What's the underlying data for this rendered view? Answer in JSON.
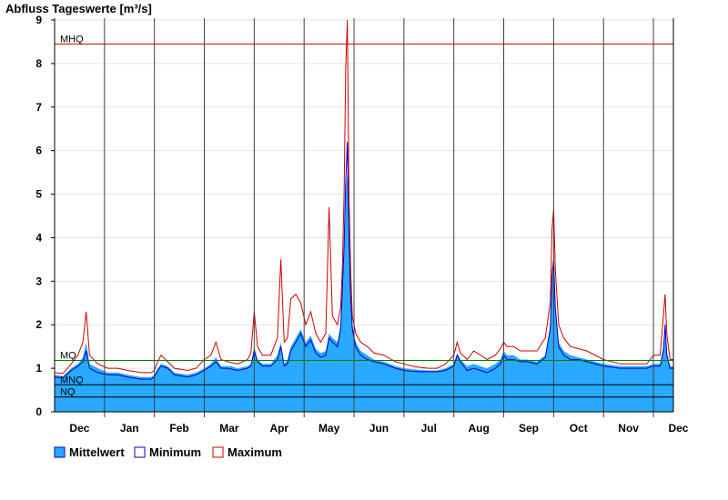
{
  "chart_data": {
    "type": "area",
    "title": "Abfluss Tageswerte [m³/s]",
    "xlabel": "",
    "ylabel": "",
    "ylim": [
      0,
      9
    ],
    "yticks": [
      "0",
      "1",
      "2",
      "3",
      "4",
      "5",
      "6",
      "7",
      "8",
      "9"
    ],
    "months": [
      "Dec",
      "Jan",
      "Feb",
      "Mar",
      "Apr",
      "May",
      "Jun",
      "Jul",
      "Aug",
      "Sep",
      "Oct",
      "Nov",
      "Dec"
    ],
    "x_range_days": [
      0,
      372
    ],
    "grid": "horizontal light gray + vertical month separators",
    "legend_placement": "bottom-left",
    "reference_lines": [
      {
        "name": "MHQ",
        "value": 8.45,
        "color": "#cc0000"
      },
      {
        "name": "MQ",
        "value": 1.18,
        "color": "#008000"
      },
      {
        "name": "MNQ",
        "value": 0.62,
        "color": "#000000"
      },
      {
        "name": "NQ",
        "value": 0.34,
        "color": "#000000"
      }
    ],
    "series": [
      {
        "name": "Mittelwert",
        "kind": "area",
        "color": "#29a9ff",
        "points": [
          [
            0,
            0.85
          ],
          [
            5,
            0.82
          ],
          [
            10,
            1.0
          ],
          [
            14,
            1.1
          ],
          [
            17,
            1.25
          ],
          [
            19,
            1.6
          ],
          [
            21,
            1.1
          ],
          [
            26,
            1.0
          ],
          [
            32,
            0.9
          ],
          [
            38,
            0.9
          ],
          [
            44,
            0.85
          ],
          [
            52,
            0.8
          ],
          [
            58,
            0.8
          ],
          [
            60,
            0.85
          ],
          [
            62,
            1.0
          ],
          [
            64,
            1.1
          ],
          [
            68,
            1.05
          ],
          [
            72,
            0.9
          ],
          [
            80,
            0.85
          ],
          [
            85,
            0.9
          ],
          [
            90,
            1.0
          ],
          [
            94,
            1.1
          ],
          [
            97,
            1.25
          ],
          [
            100,
            1.05
          ],
          [
            104,
            1.05
          ],
          [
            106,
            1.05
          ],
          [
            110,
            1.0
          ],
          [
            116,
            1.05
          ],
          [
            118,
            1.1
          ],
          [
            120,
            1.5
          ],
          [
            122,
            1.2
          ],
          [
            125,
            1.1
          ],
          [
            130,
            1.1
          ],
          [
            134,
            1.3
          ],
          [
            136,
            1.6
          ],
          [
            138,
            1.1
          ],
          [
            140,
            1.2
          ],
          [
            142,
            1.5
          ],
          [
            145,
            1.7
          ],
          [
            148,
            1.9
          ],
          [
            151,
            1.6
          ],
          [
            154,
            1.75
          ],
          [
            157,
            1.45
          ],
          [
            160,
            1.35
          ],
          [
            163,
            1.4
          ],
          [
            165,
            1.8
          ],
          [
            167,
            1.7
          ],
          [
            170,
            1.6
          ],
          [
            172,
            2.0
          ],
          [
            173,
            3.0
          ],
          [
            174,
            4.0
          ],
          [
            175,
            5.1
          ],
          [
            176,
            5.5
          ],
          [
            177,
            4.2
          ],
          [
            178,
            2.8
          ],
          [
            179,
            2.0
          ],
          [
            181,
            1.6
          ],
          [
            184,
            1.4
          ],
          [
            188,
            1.3
          ],
          [
            192,
            1.2
          ],
          [
            198,
            1.15
          ],
          [
            205,
            1.05
          ],
          [
            210,
            1.0
          ],
          [
            215,
            0.98
          ],
          [
            220,
            0.96
          ],
          [
            225,
            0.95
          ],
          [
            230,
            0.95
          ],
          [
            235,
            1.0
          ],
          [
            240,
            1.1
          ],
          [
            242,
            1.35
          ],
          [
            244,
            1.2
          ],
          [
            248,
            1.05
          ],
          [
            252,
            1.1
          ],
          [
            256,
            1.05
          ],
          [
            260,
            1.0
          ],
          [
            265,
            1.1
          ],
          [
            268,
            1.2
          ],
          [
            270,
            1.4
          ],
          [
            272,
            1.3
          ],
          [
            276,
            1.3
          ],
          [
            280,
            1.2
          ],
          [
            284,
            1.2
          ],
          [
            290,
            1.15
          ],
          [
            295,
            1.3
          ],
          [
            298,
            2.0
          ],
          [
            299,
            3.3
          ],
          [
            300,
            3.4
          ],
          [
            301,
            2.5
          ],
          [
            303,
            1.6
          ],
          [
            306,
            1.4
          ],
          [
            310,
            1.3
          ],
          [
            315,
            1.25
          ],
          [
            320,
            1.2
          ],
          [
            330,
            1.1
          ],
          [
            340,
            1.05
          ],
          [
            350,
            1.05
          ],
          [
            356,
            1.05
          ],
          [
            360,
            1.1
          ],
          [
            364,
            1.1
          ],
          [
            366,
            1.5
          ],
          [
            367,
            2.1
          ],
          [
            368,
            1.4
          ],
          [
            370,
            1.05
          ],
          [
            372,
            1.05
          ]
        ]
      },
      {
        "name": "Minimum",
        "kind": "line",
        "color": "#0000cc",
        "points": [
          [
            0,
            0.8
          ],
          [
            5,
            0.78
          ],
          [
            10,
            0.95
          ],
          [
            14,
            1.05
          ],
          [
            17,
            1.15
          ],
          [
            19,
            1.4
          ],
          [
            21,
            1.0
          ],
          [
            26,
            0.9
          ],
          [
            32,
            0.85
          ],
          [
            38,
            0.85
          ],
          [
            44,
            0.8
          ],
          [
            52,
            0.75
          ],
          [
            58,
            0.75
          ],
          [
            60,
            0.8
          ],
          [
            62,
            0.95
          ],
          [
            64,
            1.05
          ],
          [
            68,
            1.0
          ],
          [
            72,
            0.85
          ],
          [
            80,
            0.8
          ],
          [
            85,
            0.85
          ],
          [
            90,
            0.95
          ],
          [
            94,
            1.05
          ],
          [
            97,
            1.15
          ],
          [
            100,
            1.0
          ],
          [
            104,
            1.0
          ],
          [
            110,
            0.95
          ],
          [
            116,
            1.0
          ],
          [
            118,
            1.05
          ],
          [
            120,
            1.4
          ],
          [
            122,
            1.15
          ],
          [
            125,
            1.05
          ],
          [
            130,
            1.05
          ],
          [
            134,
            1.2
          ],
          [
            136,
            1.5
          ],
          [
            138,
            1.05
          ],
          [
            140,
            1.1
          ],
          [
            142,
            1.4
          ],
          [
            145,
            1.6
          ],
          [
            148,
            1.8
          ],
          [
            151,
            1.5
          ],
          [
            154,
            1.65
          ],
          [
            157,
            1.35
          ],
          [
            160,
            1.25
          ],
          [
            163,
            1.3
          ],
          [
            165,
            1.7
          ],
          [
            167,
            1.6
          ],
          [
            170,
            1.5
          ],
          [
            172,
            1.9
          ],
          [
            173,
            2.8
          ],
          [
            174,
            3.8
          ],
          [
            175,
            5.3
          ],
          [
            176,
            6.2
          ],
          [
            177,
            4.0
          ],
          [
            178,
            2.6
          ],
          [
            179,
            1.9
          ],
          [
            181,
            1.5
          ],
          [
            184,
            1.3
          ],
          [
            188,
            1.2
          ],
          [
            192,
            1.15
          ],
          [
            198,
            1.1
          ],
          [
            205,
            1.0
          ],
          [
            210,
            0.95
          ],
          [
            215,
            0.93
          ],
          [
            220,
            0.92
          ],
          [
            225,
            0.92
          ],
          [
            230,
            0.92
          ],
          [
            235,
            0.95
          ],
          [
            240,
            1.05
          ],
          [
            242,
            1.3
          ],
          [
            244,
            1.15
          ],
          [
            248,
            0.95
          ],
          [
            252,
            1.0
          ],
          [
            256,
            0.95
          ],
          [
            260,
            0.9
          ],
          [
            265,
            1.0
          ],
          [
            268,
            1.1
          ],
          [
            270,
            1.3
          ],
          [
            272,
            1.2
          ],
          [
            276,
            1.2
          ],
          [
            280,
            1.15
          ],
          [
            284,
            1.15
          ],
          [
            290,
            1.1
          ],
          [
            295,
            1.25
          ],
          [
            298,
            1.9
          ],
          [
            299,
            3.1
          ],
          [
            300,
            3.5
          ],
          [
            301,
            2.4
          ],
          [
            303,
            1.5
          ],
          [
            306,
            1.3
          ],
          [
            310,
            1.2
          ],
          [
            315,
            1.2
          ],
          [
            320,
            1.15
          ],
          [
            330,
            1.05
          ],
          [
            340,
            1.0
          ],
          [
            350,
            1.0
          ],
          [
            356,
            1.0
          ],
          [
            360,
            1.05
          ],
          [
            364,
            1.05
          ],
          [
            366,
            1.4
          ],
          [
            367,
            2.0
          ],
          [
            368,
            1.3
          ],
          [
            370,
            1.0
          ],
          [
            372,
            1.0
          ]
        ]
      },
      {
        "name": "Maximum",
        "kind": "line",
        "color": "#cc0000",
        "points": [
          [
            0,
            0.9
          ],
          [
            5,
            0.88
          ],
          [
            10,
            1.1
          ],
          [
            14,
            1.3
          ],
          [
            17,
            1.6
          ],
          [
            19,
            2.3
          ],
          [
            21,
            1.3
          ],
          [
            26,
            1.1
          ],
          [
            32,
            1.0
          ],
          [
            38,
            1.0
          ],
          [
            44,
            0.95
          ],
          [
            52,
            0.9
          ],
          [
            58,
            0.9
          ],
          [
            60,
            0.95
          ],
          [
            62,
            1.15
          ],
          [
            64,
            1.3
          ],
          [
            68,
            1.15
          ],
          [
            72,
            1.0
          ],
          [
            80,
            0.95
          ],
          [
            85,
            1.0
          ],
          [
            90,
            1.2
          ],
          [
            94,
            1.3
          ],
          [
            97,
            1.6
          ],
          [
            100,
            1.2
          ],
          [
            104,
            1.15
          ],
          [
            110,
            1.1
          ],
          [
            116,
            1.2
          ],
          [
            118,
            1.35
          ],
          [
            120,
            2.3
          ],
          [
            122,
            1.5
          ],
          [
            125,
            1.3
          ],
          [
            130,
            1.3
          ],
          [
            134,
            1.7
          ],
          [
            136,
            3.5
          ],
          [
            138,
            1.6
          ],
          [
            140,
            1.7
          ],
          [
            142,
            2.6
          ],
          [
            145,
            2.7
          ],
          [
            148,
            2.5
          ],
          [
            151,
            2.0
          ],
          [
            154,
            2.3
          ],
          [
            157,
            1.8
          ],
          [
            160,
            1.6
          ],
          [
            163,
            1.8
          ],
          [
            165,
            4.7
          ],
          [
            167,
            2.2
          ],
          [
            170,
            2.0
          ],
          [
            172,
            2.4
          ],
          [
            173,
            3.3
          ],
          [
            174,
            5.0
          ],
          [
            175,
            7.9
          ],
          [
            176,
            9.0
          ],
          [
            177,
            5.0
          ],
          [
            178,
            3.2
          ],
          [
            179,
            2.2
          ],
          [
            181,
            1.8
          ],
          [
            184,
            1.6
          ],
          [
            188,
            1.5
          ],
          [
            192,
            1.35
          ],
          [
            198,
            1.3
          ],
          [
            205,
            1.15
          ],
          [
            210,
            1.1
          ],
          [
            215,
            1.05
          ],
          [
            220,
            1.02
          ],
          [
            225,
            1.0
          ],
          [
            230,
            1.0
          ],
          [
            235,
            1.1
          ],
          [
            240,
            1.3
          ],
          [
            242,
            1.6
          ],
          [
            244,
            1.35
          ],
          [
            248,
            1.2
          ],
          [
            252,
            1.4
          ],
          [
            256,
            1.3
          ],
          [
            260,
            1.2
          ],
          [
            265,
            1.3
          ],
          [
            268,
            1.45
          ],
          [
            270,
            1.6
          ],
          [
            272,
            1.5
          ],
          [
            276,
            1.5
          ],
          [
            280,
            1.4
          ],
          [
            284,
            1.4
          ],
          [
            290,
            1.4
          ],
          [
            295,
            1.7
          ],
          [
            298,
            2.5
          ],
          [
            299,
            4.2
          ],
          [
            300,
            4.65
          ],
          [
            301,
            3.3
          ],
          [
            303,
            2.0
          ],
          [
            306,
            1.7
          ],
          [
            310,
            1.5
          ],
          [
            315,
            1.45
          ],
          [
            320,
            1.4
          ],
          [
            330,
            1.2
          ],
          [
            340,
            1.1
          ],
          [
            350,
            1.1
          ],
          [
            356,
            1.1
          ],
          [
            360,
            1.3
          ],
          [
            364,
            1.3
          ],
          [
            366,
            2.2
          ],
          [
            367,
            2.7
          ],
          [
            368,
            1.8
          ],
          [
            370,
            1.2
          ],
          [
            372,
            1.2
          ]
        ]
      }
    ],
    "legend": [
      {
        "label": "Mittelwert",
        "fill": "#29a9ff",
        "stroke": "#0000cc"
      },
      {
        "label": "Minimum",
        "fill": "#ffffff",
        "stroke": "#0000cc"
      },
      {
        "label": "Maximum",
        "fill": "#ffffff",
        "stroke": "#cc0000"
      }
    ]
  }
}
